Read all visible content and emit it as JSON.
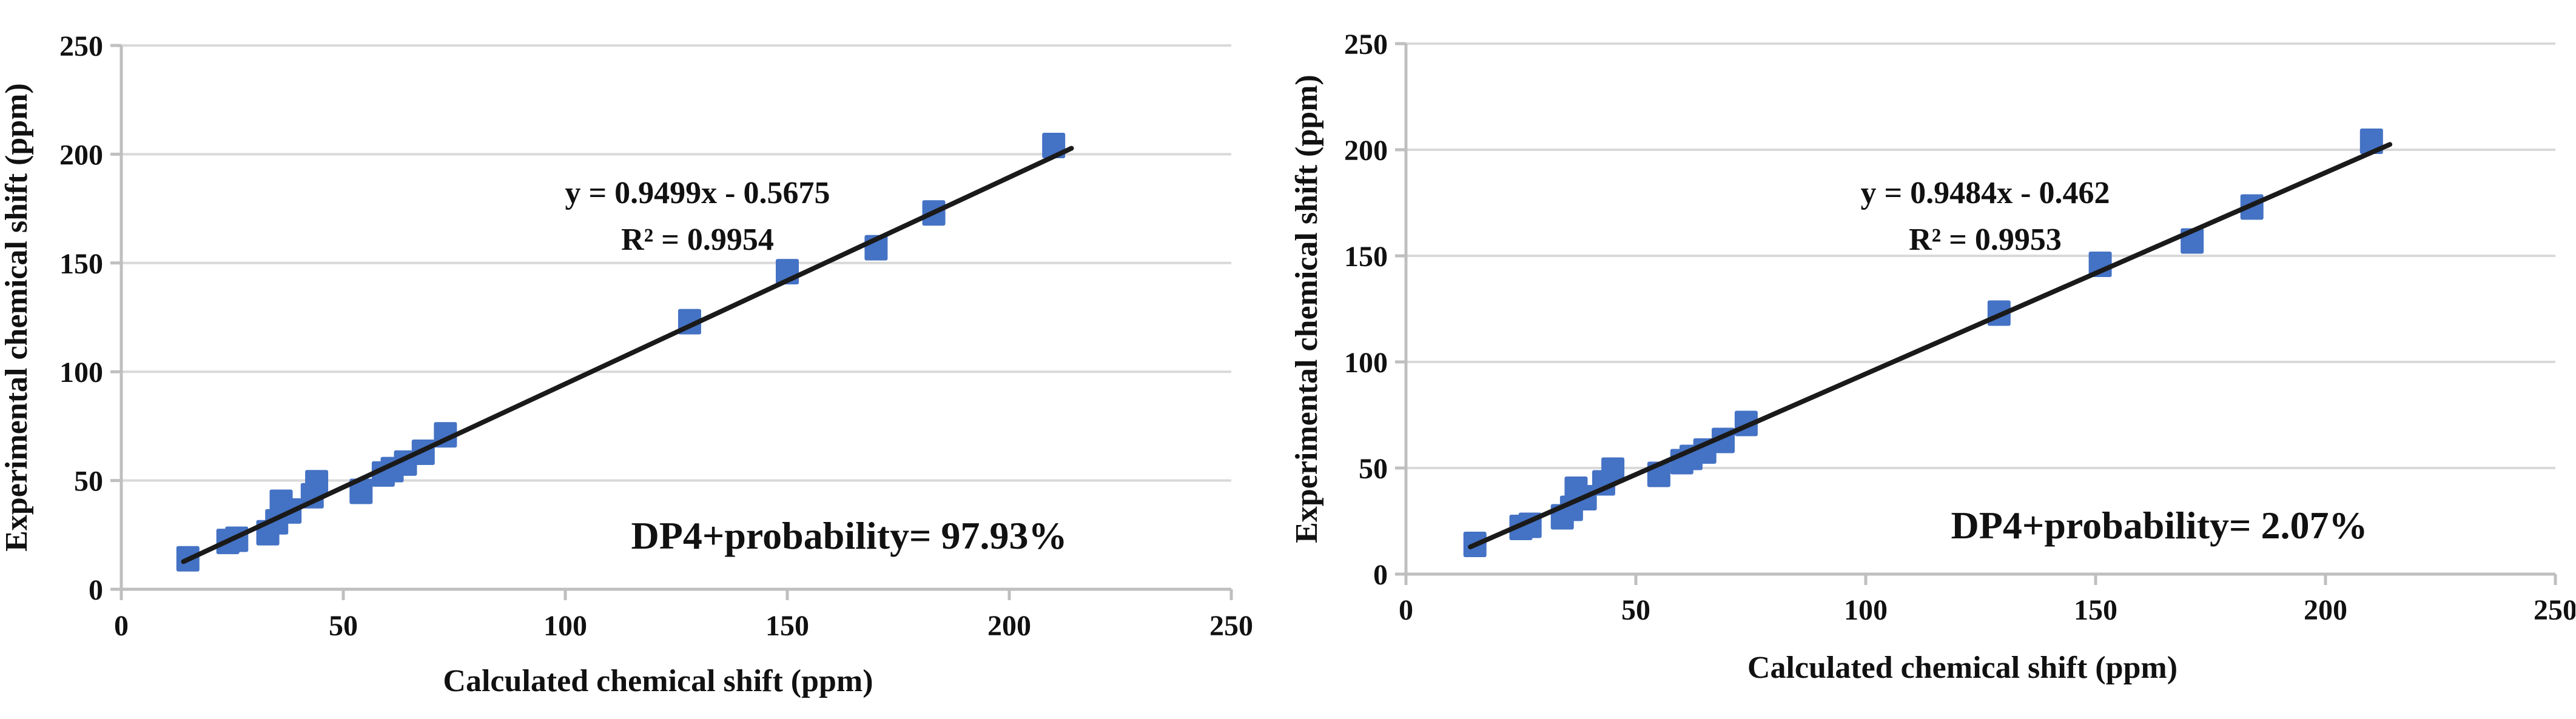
{
  "figure": {
    "background": "#ffffff",
    "description_left_panel": "correlation plot with DP4+ probability 97.93%",
    "description_right_panel": "correlation plot with DP4+ probability 2.07%"
  },
  "chart_data": [
    {
      "type": "scatter",
      "title": "",
      "xlabel": "Calculated chemical shift (ppm)",
      "ylabel": "Experimental chemical shift (ppm)",
      "xlim": [
        0,
        250
      ],
      "ylim": [
        0,
        250
      ],
      "xticks": [
        0,
        50,
        100,
        150,
        200,
        250
      ],
      "yticks": [
        0,
        50,
        100,
        150,
        200,
        250
      ],
      "grid": "horizontal",
      "legend": "none",
      "points": [
        [
          15,
          14
        ],
        [
          24,
          22
        ],
        [
          26,
          23
        ],
        [
          33,
          26
        ],
        [
          35,
          31
        ],
        [
          36,
          40
        ],
        [
          38,
          36
        ],
        [
          43,
          43
        ],
        [
          44,
          49
        ],
        [
          54,
          45
        ],
        [
          59,
          53
        ],
        [
          61,
          55
        ],
        [
          64,
          58
        ],
        [
          68,
          63
        ],
        [
          73,
          71
        ],
        [
          128,
          123
        ],
        [
          150,
          146
        ],
        [
          170,
          157
        ],
        [
          183,
          173
        ],
        [
          210,
          204
        ]
      ],
      "trendline": {
        "slope": 0.9499,
        "intercept": -0.5675,
        "x_start": 14,
        "x_end": 214
      },
      "equation_label": "y = 0.9499x - 0.5675",
      "r2_label": "R² = 0.9954",
      "probability_label": "DP4+probability= 97.93%",
      "colors": {
        "marker": "#4472C4",
        "trendline": "#1a1a1a",
        "gridline": "#D9D9D9",
        "axis": "#BFBFBF",
        "text": "#111111"
      }
    },
    {
      "type": "scatter",
      "title": "",
      "xlabel": "Calculated chemical shift (ppm)",
      "ylabel": "Experimental chemical shift (ppm)",
      "xlim": [
        0,
        250
      ],
      "ylim": [
        0,
        250
      ],
      "xticks": [
        0,
        50,
        100,
        150,
        200,
        250
      ],
      "yticks": [
        0,
        50,
        100,
        150,
        200,
        250
      ],
      "grid": "horizontal",
      "legend": "none",
      "points": [
        [
          15,
          14
        ],
        [
          25,
          22
        ],
        [
          27,
          23
        ],
        [
          34,
          27
        ],
        [
          36,
          31
        ],
        [
          37,
          40
        ],
        [
          39,
          36
        ],
        [
          43,
          43
        ],
        [
          45,
          49
        ],
        [
          55,
          47
        ],
        [
          60,
          53
        ],
        [
          62,
          55
        ],
        [
          65,
          58
        ],
        [
          69,
          63
        ],
        [
          74,
          71
        ],
        [
          129,
          123
        ],
        [
          151,
          146
        ],
        [
          171,
          157
        ],
        [
          184,
          173
        ],
        [
          210,
          204
        ]
      ],
      "trendline": {
        "slope": 0.9484,
        "intercept": -0.462,
        "x_start": 14,
        "x_end": 214
      },
      "equation_label": "y = 0.9484x - 0.462",
      "r2_label": "R² = 0.9953",
      "probability_label": "DP4+probability= 2.07%",
      "colors": {
        "marker": "#4472C4",
        "trendline": "#1a1a1a",
        "gridline": "#D9D9D9",
        "axis": "#BFBFBF",
        "text": "#111111"
      }
    }
  ]
}
